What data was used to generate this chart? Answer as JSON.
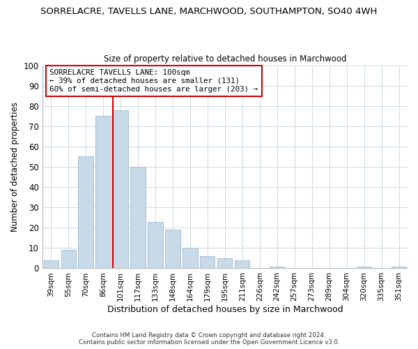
{
  "title_line1": "SORRELACRE, TAVELLS LANE, MARCHWOOD, SOUTHAMPTON, SO40 4WH",
  "title_line2": "Size of property relative to detached houses in Marchwood",
  "xlabel": "Distribution of detached houses by size in Marchwood",
  "ylabel": "Number of detached properties",
  "bar_labels": [
    "39sqm",
    "55sqm",
    "70sqm",
    "86sqm",
    "101sqm",
    "117sqm",
    "133sqm",
    "148sqm",
    "164sqm",
    "179sqm",
    "195sqm",
    "211sqm",
    "226sqm",
    "242sqm",
    "257sqm",
    "273sqm",
    "289sqm",
    "304sqm",
    "320sqm",
    "335sqm",
    "351sqm"
  ],
  "bar_values": [
    4,
    9,
    55,
    75,
    78,
    50,
    23,
    19,
    10,
    6,
    5,
    4,
    0,
    1,
    0,
    0,
    0,
    0,
    1,
    0,
    1
  ],
  "bar_color": "#c8d9e8",
  "bar_edge_color": "#a8c0d4",
  "vline_x_index": 4,
  "vline_color": "#cc0000",
  "ylim": [
    0,
    100
  ],
  "yticks": [
    0,
    10,
    20,
    30,
    40,
    50,
    60,
    70,
    80,
    90,
    100
  ],
  "annotation_title": "SORRELACRE TAVELLS LANE: 100sqm",
  "annotation_line1": "← 39% of detached houses are smaller (131)",
  "annotation_line2": "60% of semi-detached houses are larger (203) →",
  "annotation_box_color": "#ffffff",
  "annotation_box_edge": "#cc0000",
  "footer_line1": "Contains HM Land Registry data © Crown copyright and database right 2024.",
  "footer_line2": "Contains public sector information licensed under the Open Government Licence v3.0.",
  "background_color": "#ffffff",
  "grid_color": "#ccd9e4"
}
